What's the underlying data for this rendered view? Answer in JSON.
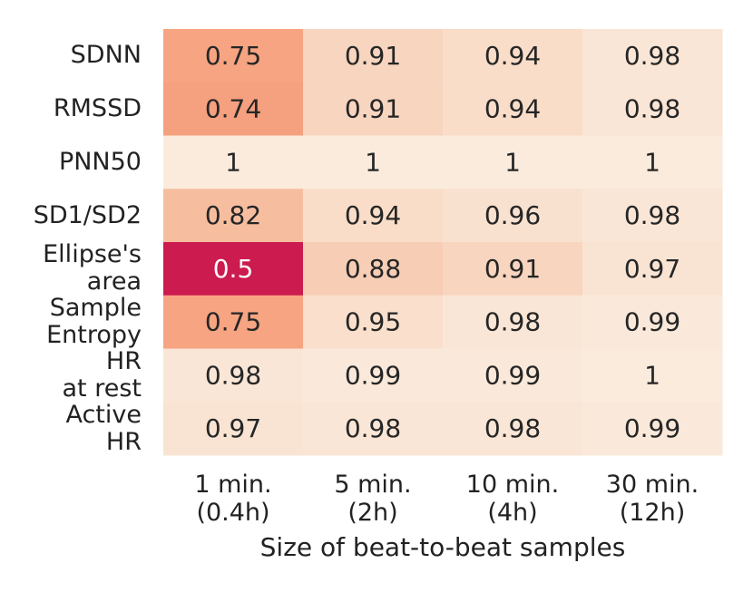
{
  "chart_data": {
    "type": "heatmap",
    "rows": [
      "SDNN",
      "RMSSD",
      "PNN50",
      "SD1/SD2",
      "Ellipse's\narea",
      "Sample\nEntropy",
      "HR\nat rest",
      "Active\nHR"
    ],
    "columns": [
      "1 min.\n(0.4h)",
      "5 min.\n(2h)",
      "10 min.\n(4h)",
      "30 min.\n(12h)"
    ],
    "values": [
      [
        0.75,
        0.91,
        0.94,
        0.98
      ],
      [
        0.74,
        0.91,
        0.94,
        0.98
      ],
      [
        1,
        1,
        1,
        1
      ],
      [
        0.82,
        0.94,
        0.96,
        0.98
      ],
      [
        0.5,
        0.88,
        0.91,
        0.97
      ],
      [
        0.75,
        0.95,
        0.98,
        0.99
      ],
      [
        0.98,
        0.99,
        0.99,
        1
      ],
      [
        0.97,
        0.98,
        0.98,
        0.99
      ]
    ],
    "xlabel": "Size of beat-to-beat samples",
    "ylabel": "",
    "value_range": [
      0.5,
      1
    ],
    "colormap": [
      "#cb1b4f",
      "#f5855f",
      "#f6c3a5",
      "#faebdd"
    ],
    "label_color_dark": "#262626",
    "label_color_light": "#ffffff",
    "grid": false,
    "colorbar": false
  }
}
